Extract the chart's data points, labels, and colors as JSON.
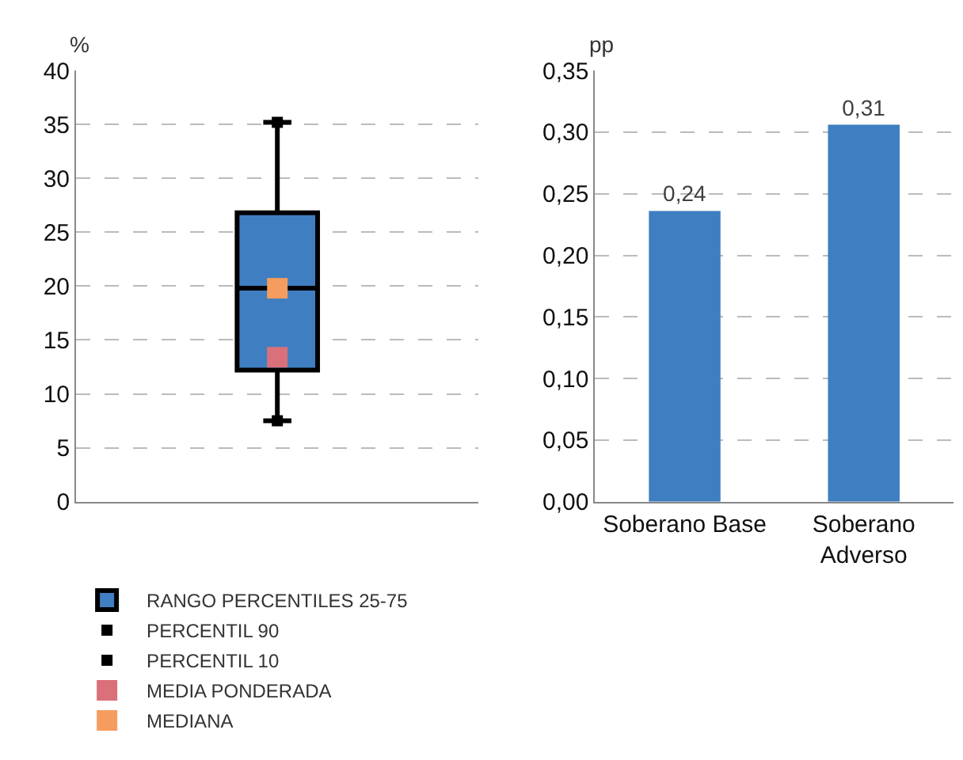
{
  "chart_data": [
    {
      "type": "box",
      "categories": [
        null
      ],
      "ylabel": "%",
      "ylim": [
        0,
        40
      ],
      "yticks": [
        0,
        5,
        10,
        15,
        20,
        25,
        30,
        35,
        40
      ],
      "grid": "y",
      "legend": "bottom left",
      "series": [
        {
          "name": "PERCENTIL 90",
          "type": "scatter",
          "marker": "square",
          "color": "#000000",
          "values": [
            35.2
          ]
        },
        {
          "name": "PERCENTIL 10",
          "type": "scatter",
          "marker": "square",
          "color": "#000000",
          "values": [
            7.5
          ]
        },
        {
          "name": "RANGO PERCENTILES 25-75",
          "type": "box",
          "color": "#3f7fc1",
          "boxes": [
            {
              "low": 7.5,
              "q1": 12.2,
              "median": 19.8,
              "q3": 26.8,
              "high": 35.2
            }
          ]
        },
        {
          "name": "MEDIA PONDERADA",
          "type": "scatter",
          "marker": "square",
          "color": "#d9707a",
          "values": [
            13.4
          ]
        },
        {
          "name": "MEDIANA",
          "type": "scatter",
          "marker": "square",
          "color": "#f59d5f",
          "values": [
            19.8
          ]
        }
      ]
    },
    {
      "type": "bar",
      "categories": [
        "Soberano Base",
        "Soberano Adverso"
      ],
      "ylabel": "pp",
      "ylim": [
        0,
        0.35
      ],
      "yticks": [
        {
          "value": 0,
          "label": "0,00"
        },
        {
          "value": 0.05,
          "label": "0,05"
        },
        {
          "value": 0.1,
          "label": "0,10"
        },
        {
          "value": 0.15,
          "label": "0,15"
        },
        {
          "value": 0.2,
          "label": "0,20"
        },
        {
          "value": 0.25,
          "label": "0,25"
        },
        {
          "value": 0.3,
          "label": "0,30"
        },
        {
          "value": 0.35,
          "label": "0,35"
        }
      ],
      "grid": "y",
      "color": "#3f7fc1",
      "values": [
        0.236,
        0.306
      ],
      "value_labels": [
        "0,24",
        "0,31"
      ]
    }
  ]
}
